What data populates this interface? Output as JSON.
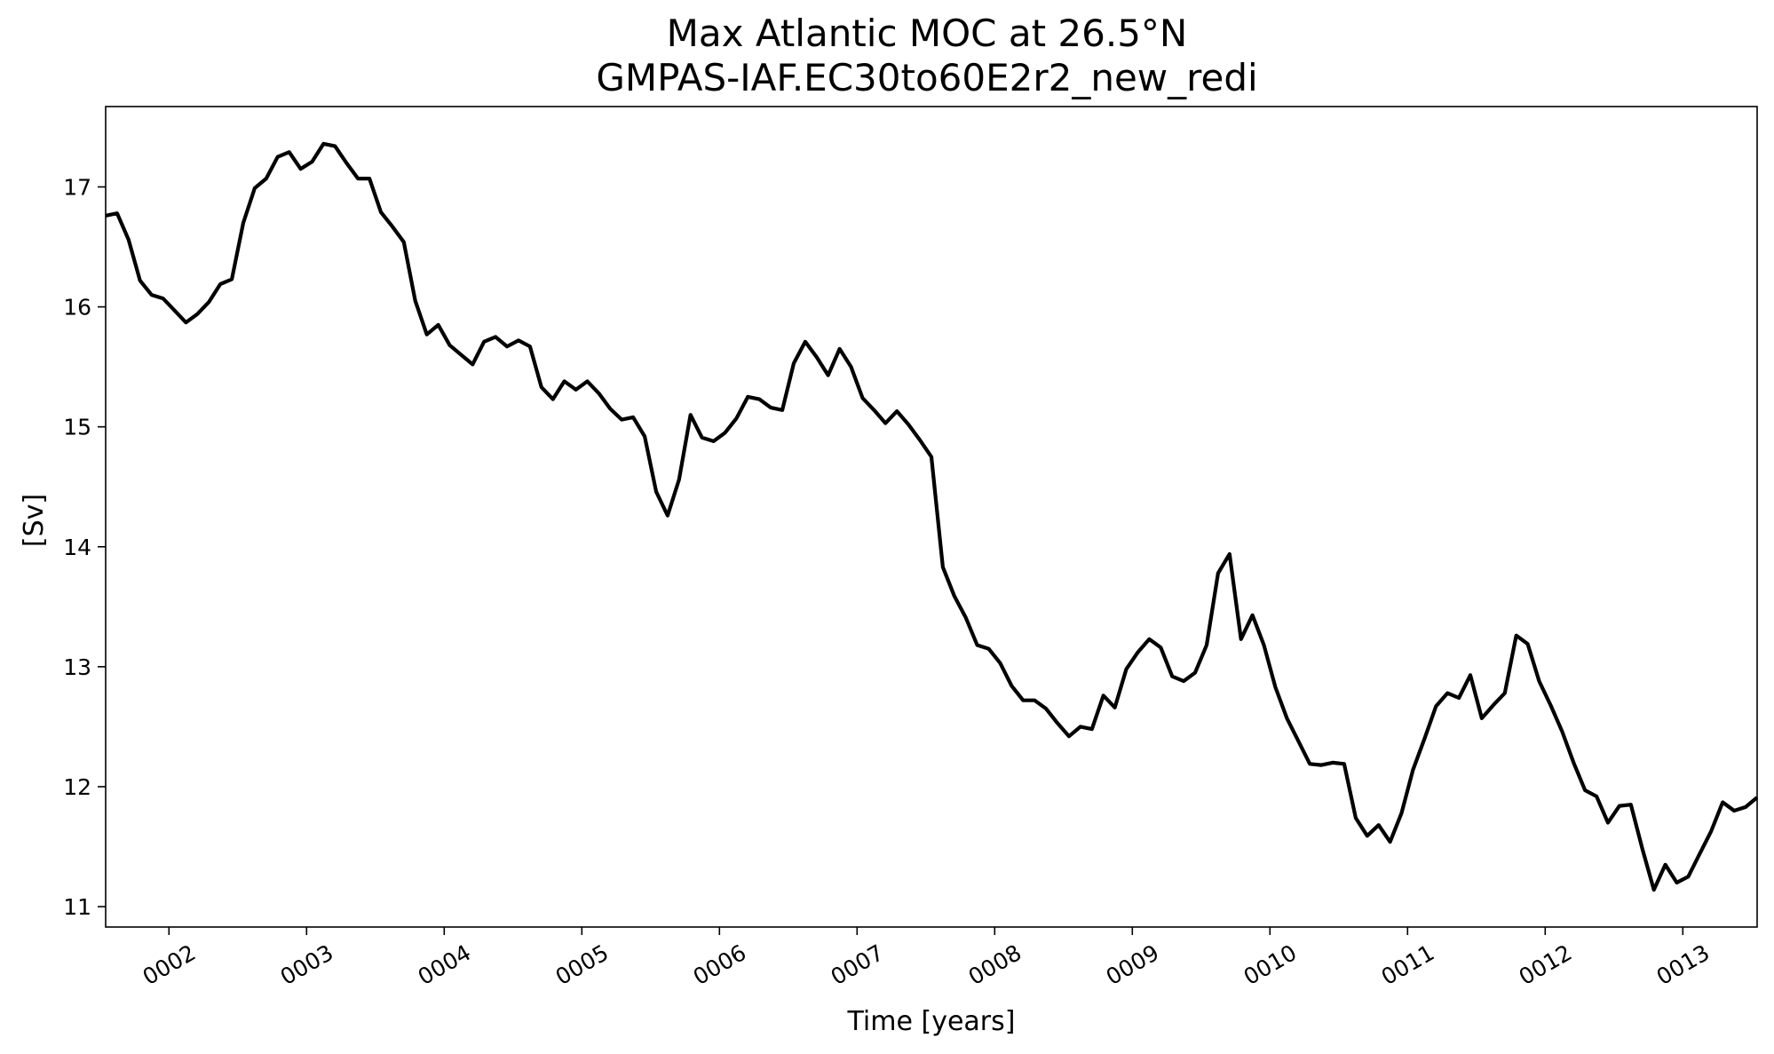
{
  "chart_data": {
    "type": "line",
    "title": "Max Atlantic MOC at 26.5°N",
    "subtitle": "GMPAS-IAF.EC30to60E2r2_new_redi",
    "xlabel": "Time [years]",
    "ylabel": "[Sv]",
    "xlim": [
      1.54,
      13.54
    ],
    "ylim": [
      10.83,
      17.67
    ],
    "grid": false,
    "line_color": "#000000",
    "x_ticks": [
      {
        "value": 2,
        "label": "0002"
      },
      {
        "value": 3,
        "label": "0003"
      },
      {
        "value": 4,
        "label": "0004"
      },
      {
        "value": 5,
        "label": "0005"
      },
      {
        "value": 6,
        "label": "0006"
      },
      {
        "value": 7,
        "label": "0007"
      },
      {
        "value": 8,
        "label": "0008"
      },
      {
        "value": 9,
        "label": "0009"
      },
      {
        "value": 10,
        "label": "0010"
      },
      {
        "value": 11,
        "label": "0011"
      },
      {
        "value": 12,
        "label": "0012"
      },
      {
        "value": 13,
        "label": "0013"
      }
    ],
    "y_ticks": [
      {
        "value": 11,
        "label": "11"
      },
      {
        "value": 12,
        "label": "12"
      },
      {
        "value": 13,
        "label": "13"
      },
      {
        "value": 14,
        "label": "14"
      },
      {
        "value": 15,
        "label": "15"
      },
      {
        "value": 16,
        "label": "16"
      },
      {
        "value": 17,
        "label": "17"
      }
    ],
    "series": [
      {
        "x_start": 1.54,
        "x_step": 0.08333,
        "values": [
          16.76,
          16.78,
          16.56,
          16.22,
          16.1,
          16.07,
          15.97,
          15.87,
          15.94,
          16.04,
          16.19,
          16.23,
          16.7,
          16.99,
          17.07,
          17.25,
          17.29,
          17.15,
          17.21,
          17.36,
          17.34,
          17.2,
          17.07,
          17.07,
          16.79,
          16.67,
          16.54,
          16.05,
          15.77,
          15.85,
          15.68,
          15.6,
          15.52,
          15.71,
          15.75,
          15.67,
          15.72,
          15.67,
          15.33,
          15.23,
          15.38,
          15.31,
          15.38,
          15.28,
          15.15,
          15.06,
          15.08,
          14.92,
          14.46,
          14.26,
          14.56,
          15.1,
          14.91,
          14.88,
          14.95,
          15.07,
          15.25,
          15.23,
          15.16,
          15.14,
          15.53,
          15.71,
          15.58,
          15.43,
          15.65,
          15.5,
          15.24,
          15.14,
          15.03,
          15.13,
          15.02,
          14.89,
          14.75,
          13.83,
          13.59,
          13.41,
          13.18,
          13.15,
          13.03,
          12.84,
          12.72,
          12.72,
          12.65,
          12.53,
          12.42,
          12.5,
          12.48,
          12.76,
          12.66,
          12.98,
          13.12,
          13.23,
          13.16,
          12.92,
          12.88,
          12.95,
          13.18,
          13.78,
          13.94,
          13.23,
          13.43,
          13.18,
          12.83,
          12.57,
          12.38,
          12.19,
          12.18,
          12.2,
          12.19,
          11.74,
          11.59,
          11.68,
          11.54,
          11.78,
          12.14,
          12.4,
          12.67,
          12.78,
          12.74,
          12.93,
          12.57,
          12.68,
          12.78,
          13.26,
          13.19,
          12.88,
          12.68,
          12.46,
          12.2,
          11.97,
          11.92,
          11.7,
          11.84,
          11.85,
          11.48,
          11.14,
          11.35,
          11.2,
          11.25,
          11.44,
          11.63,
          11.87,
          11.8,
          11.83,
          11.91
        ]
      }
    ]
  }
}
